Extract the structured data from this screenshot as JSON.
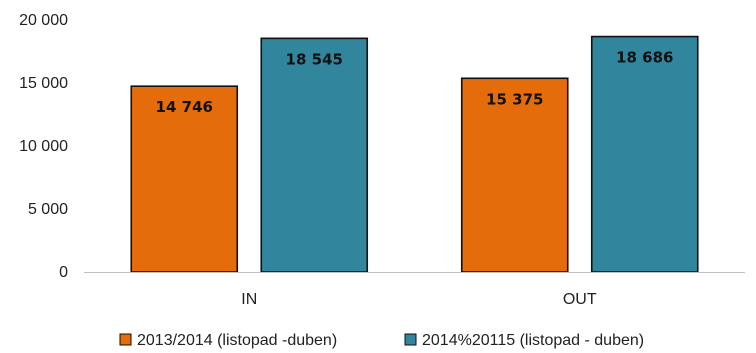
{
  "chart_data": {
    "type": "bar",
    "categories": [
      "IN",
      "OUT"
    ],
    "series": [
      {
        "name": "2013/2014 (listopad -duben)",
        "values": [
          14746,
          15375
        ],
        "labels": [
          "14 746",
          "15 375"
        ],
        "color": "#E46C0A"
      },
      {
        "name": "2014%20115 (listopad - duben)",
        "values": [
          18545,
          18686
        ],
        "labels": [
          "18 545",
          "18 686"
        ],
        "color": "#31859C"
      }
    ],
    "yticks": [
      0,
      5000,
      10000,
      15000,
      20000
    ],
    "ytick_labels": [
      "0",
      "5 000",
      "10 000",
      "15 000",
      "20 000"
    ],
    "ylim": [
      0,
      20000
    ],
    "grid": false,
    "legend_position": "bottom"
  }
}
